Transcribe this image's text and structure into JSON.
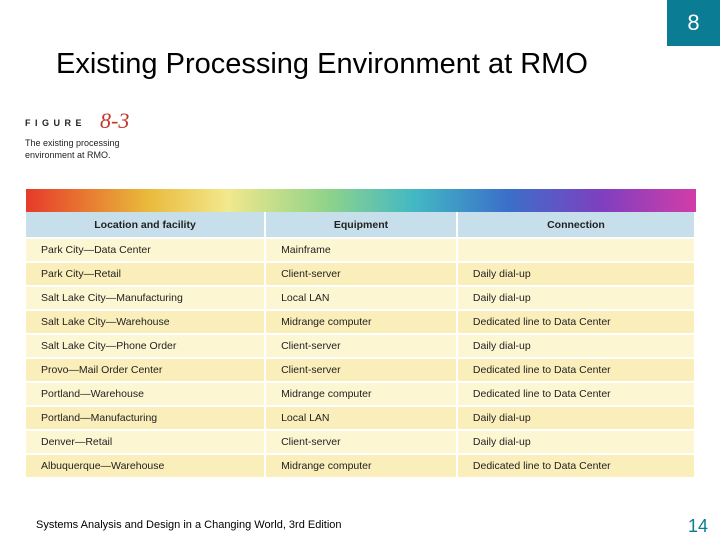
{
  "slide": {
    "chapter": "8",
    "title": "Existing Processing Environment at RMO",
    "page_number": "14",
    "footer": "Systems Analysis and Design in a Changing World, 3rd Edition"
  },
  "figure": {
    "label": "FIGURE",
    "number": "8-3",
    "caption_line1": "The existing processing",
    "caption_line2": "environment at RMO."
  },
  "table": {
    "headers": [
      "Location and facility",
      "Equipment",
      "Connection"
    ],
    "rows": [
      [
        "Park City—Data Center",
        "Mainframe",
        ""
      ],
      [
        "Park City—Retail",
        "Client-server",
        "Daily dial-up"
      ],
      [
        "Salt Lake City—Manufacturing",
        "Local LAN",
        "Daily dial-up"
      ],
      [
        "Salt Lake City—Warehouse",
        "Midrange computer",
        "Dedicated line to Data Center"
      ],
      [
        "Salt Lake City—Phone Order",
        "Client-server",
        "Daily dial-up"
      ],
      [
        "Provo—Mail Order Center",
        "Client-server",
        "Dedicated line to Data Center"
      ],
      [
        "Portland—Warehouse",
        "Midrange computer",
        "Dedicated line to Data Center"
      ],
      [
        "Portland—Manufacturing",
        "Local LAN",
        "Daily dial-up"
      ],
      [
        "Denver—Retail",
        "Client-server",
        "Daily dial-up"
      ],
      [
        "Albuquerque—Warehouse",
        "Midrange computer",
        "Dedicated line to Data Center"
      ]
    ]
  },
  "colors": {
    "accent": "#0a7c94",
    "header_bg": "#c7dfeb",
    "row_bg": "#fbf2c4"
  }
}
